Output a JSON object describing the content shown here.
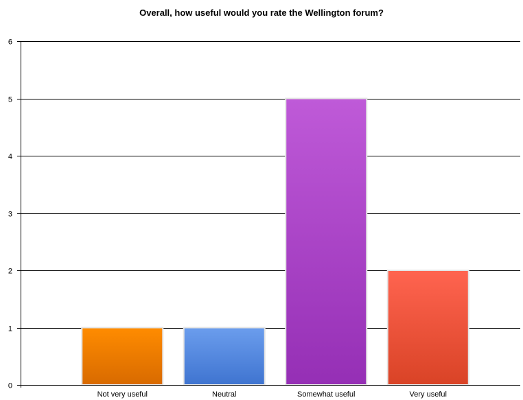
{
  "chart_data": {
    "type": "bar",
    "title": "Overall, how useful would you rate the Wellington forum?",
    "xlabel": "",
    "ylabel": "",
    "categories": [
      "Not very useful",
      "Neutral",
      "Somewhat useful",
      "Very useful"
    ],
    "values": [
      1,
      1,
      5,
      2
    ],
    "ylim": [
      0,
      6
    ],
    "yticks": [
      "0",
      "1",
      "2",
      "3",
      "4",
      "5",
      "6"
    ],
    "grid": true,
    "legend": "none",
    "bar_colors": [
      {
        "top": "#ff8c00",
        "bottom": "#d86a00"
      },
      {
        "top": "#6b9ded",
        "bottom": "#3f74d0"
      },
      {
        "top": "#bf5ad8",
        "bottom": "#952fb5"
      },
      {
        "top": "#ff6450",
        "bottom": "#d94326"
      }
    ],
    "bar_border_color": "#e4e4e4",
    "gridline_color": "#000000"
  }
}
